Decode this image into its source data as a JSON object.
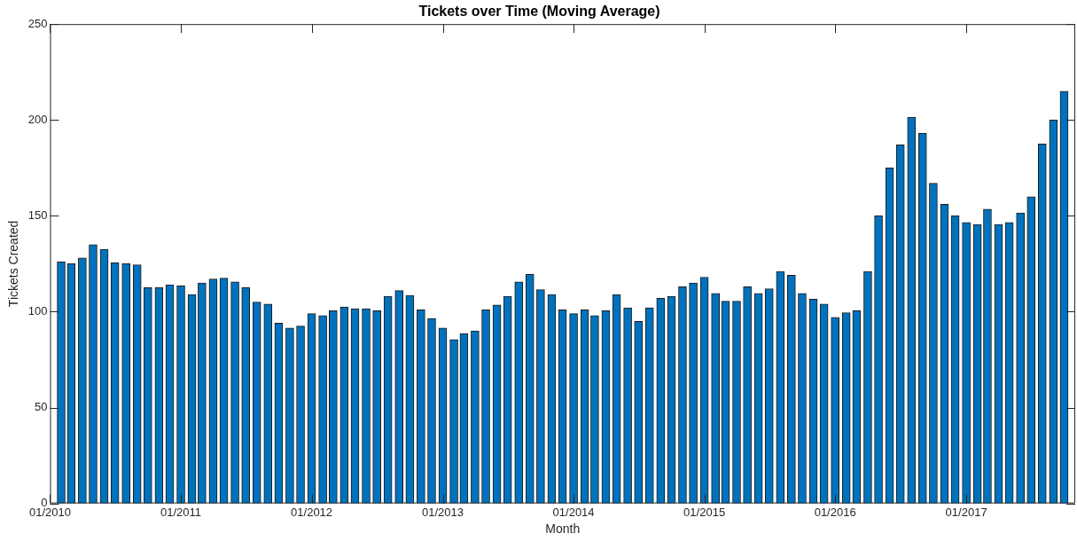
{
  "chart_data": {
    "type": "bar",
    "title": "Tickets over Time (Moving Average)",
    "xlabel": "Month",
    "ylabel": "Tickets Created",
    "color": "#0072bd",
    "x": [
      "2010-02",
      "2010-03",
      "2010-04",
      "2010-05",
      "2010-06",
      "2010-07",
      "2010-08",
      "2010-09",
      "2010-10",
      "2010-11",
      "2010-12",
      "2011-01",
      "2011-02",
      "2011-03",
      "2011-04",
      "2011-05",
      "2011-06",
      "2011-07",
      "2011-08",
      "2011-09",
      "2011-10",
      "2011-11",
      "2011-12",
      "2012-01",
      "2012-02",
      "2012-03",
      "2012-04",
      "2012-05",
      "2012-06",
      "2012-07",
      "2012-08",
      "2012-09",
      "2012-10",
      "2012-11",
      "2012-12",
      "2013-01",
      "2013-02",
      "2013-03",
      "2013-04",
      "2013-05",
      "2013-06",
      "2013-07",
      "2013-08",
      "2013-09",
      "2013-10",
      "2013-11",
      "2013-12",
      "2014-01",
      "2014-02",
      "2014-03",
      "2014-04",
      "2014-05",
      "2014-06",
      "2014-07",
      "2014-08",
      "2014-09",
      "2014-10",
      "2014-11",
      "2014-12",
      "2015-01",
      "2015-02",
      "2015-03",
      "2015-04",
      "2015-05",
      "2015-06",
      "2015-07",
      "2015-08",
      "2015-09",
      "2015-10",
      "2015-11",
      "2015-12",
      "2016-01",
      "2016-02",
      "2016-03",
      "2016-04",
      "2016-05",
      "2016-06",
      "2016-07",
      "2016-08",
      "2016-09",
      "2016-10",
      "2016-11",
      "2016-12",
      "2017-01",
      "2017-02",
      "2017-03",
      "2017-04",
      "2017-05",
      "2017-06",
      "2017-07",
      "2017-08",
      "2017-09",
      "2017-10"
    ],
    "values": [
      126,
      125,
      128,
      135,
      132.5,
      125.5,
      125,
      124.5,
      112.5,
      112.5,
      114,
      113.5,
      109,
      115,
      117,
      117.5,
      115.5,
      112.5,
      105,
      104,
      94,
      91.5,
      92.5,
      99,
      98,
      100.5,
      102.5,
      101.5,
      101.5,
      100.5,
      108,
      111,
      108.5,
      101,
      96.5,
      91.5,
      85.5,
      88.5,
      90,
      101,
      103.5,
      108,
      115.5,
      119.5,
      111.5,
      109,
      101,
      99,
      101,
      98,
      100.5,
      109,
      102,
      95,
      102,
      107,
      108,
      113,
      115,
      118,
      109.5,
      105.5,
      105.5,
      113,
      109.5,
      112,
      121,
      119,
      109.5,
      106.5,
      104,
      97,
      99.5,
      100.5,
      121,
      150,
      175,
      187,
      201.5,
      193,
      167,
      156,
      150,
      146.5,
      145.5,
      153.5,
      145.5,
      146.5,
      151.5,
      160,
      187.5,
      200,
      215
    ],
    "xlim": [
      "2010-01",
      "2017-11"
    ],
    "xticks": [
      {
        "value": "2010-01",
        "label": "01/2010"
      },
      {
        "value": "2011-01",
        "label": "01/2011"
      },
      {
        "value": "2012-01",
        "label": "01/2012"
      },
      {
        "value": "2013-01",
        "label": "01/2013"
      },
      {
        "value": "2014-01",
        "label": "01/2014"
      },
      {
        "value": "2015-01",
        "label": "01/2015"
      },
      {
        "value": "2016-01",
        "label": "01/2016"
      },
      {
        "value": "2017-01",
        "label": "01/2017"
      }
    ],
    "ylim": [
      0,
      250
    ],
    "yticks": [
      0,
      50,
      100,
      150,
      200,
      250
    ],
    "grid": false,
    "legend": false
  }
}
